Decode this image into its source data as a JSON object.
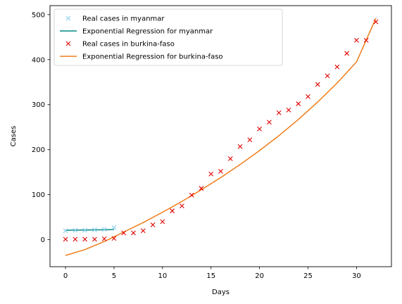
{
  "chart_data": {
    "type": "line",
    "title": "",
    "xlabel": "Days",
    "ylabel": "Cases",
    "xlim": [
      -1.6,
      33.6
    ],
    "ylim": [
      -60,
      520
    ],
    "xticks": [
      0,
      5,
      10,
      15,
      20,
      25,
      30
    ],
    "yticks": [
      0,
      100,
      200,
      300,
      400,
      500
    ],
    "grid": false,
    "legend": "top-left",
    "series": [
      {
        "name": "Real cases in myanmar",
        "kind": "scatter",
        "marker": "x",
        "color": "#87ceeb",
        "x": [
          0,
          1,
          2,
          3,
          4,
          5
        ],
        "y": [
          20,
          21,
          21,
          22,
          23,
          27
        ]
      },
      {
        "name": "Exponential Regression for myanmar",
        "kind": "line",
        "color": "#008b8b",
        "x": [
          0,
          1,
          2,
          3,
          4,
          5
        ],
        "y": [
          21,
          21.2,
          21.5,
          21.8,
          22.1,
          22.4
        ]
      },
      {
        "name": "Real cases in burkina-faso",
        "kind": "scatter",
        "marker": "x",
        "color": "#e00000",
        "x": [
          0,
          1,
          2,
          3,
          4,
          5,
          6,
          7,
          8,
          9,
          10,
          11,
          12,
          13,
          14,
          15,
          16,
          17,
          18,
          19,
          20,
          21,
          22,
          23,
          24,
          25,
          26,
          27,
          28,
          29,
          30,
          31,
          32
        ],
        "y": [
          1,
          1,
          1,
          1,
          2,
          3,
          15,
          15,
          20,
          33,
          40,
          64,
          75,
          99,
          114,
          146,
          152,
          180,
          207,
          222,
          246,
          261,
          282,
          288,
          302,
          318,
          345,
          364,
          384,
          414,
          443,
          443,
          484
        ]
      },
      {
        "name": "Exponential Regression for burkina-faso",
        "kind": "line",
        "color": "#f07d1a",
        "x": [
          0,
          2,
          4,
          6,
          8,
          10,
          12,
          14,
          16,
          18,
          20,
          22,
          24,
          26,
          28,
          30,
          32
        ],
        "y": [
          -35,
          -22,
          -4,
          17,
          38,
          61,
          85,
          111,
          138,
          167,
          198,
          231,
          267,
          306,
          348,
          395,
          492
        ]
      }
    ]
  }
}
